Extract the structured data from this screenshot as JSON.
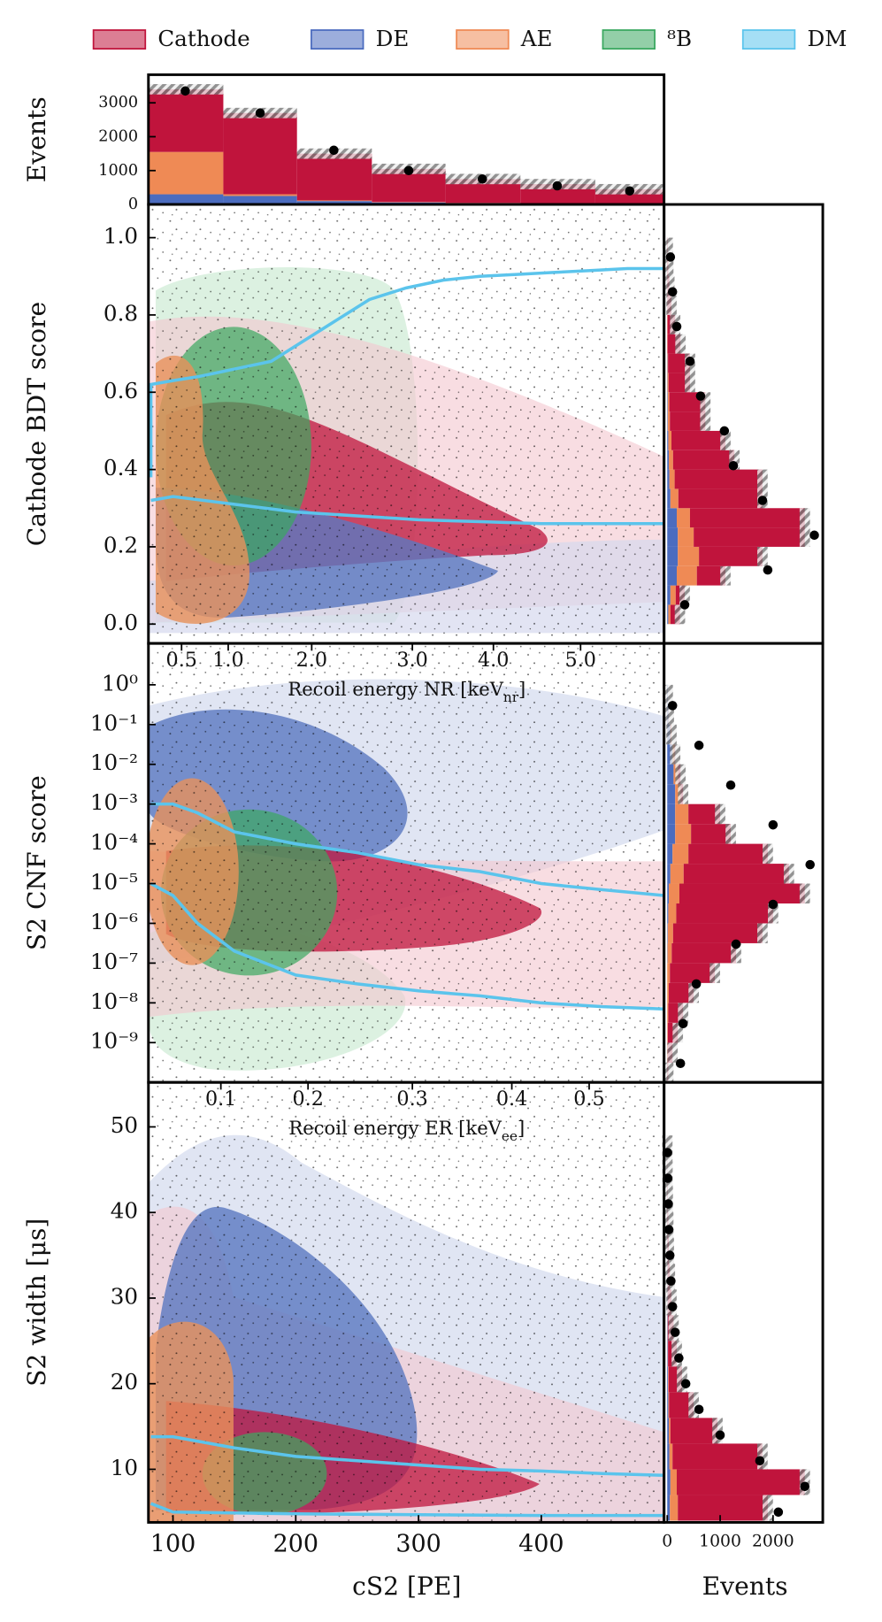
{
  "legend": [
    {
      "name": "Cathode",
      "color": "#c0143c"
    },
    {
      "name": "DE",
      "color": "#4b6cbf"
    },
    {
      "name": "AE",
      "color": "#ef8a55"
    },
    {
      "name": "⁸B",
      "color": "#3aa860"
    },
    {
      "name": "DM",
      "color": "#5bc4ec"
    }
  ],
  "chart_data": [
    {
      "type": "histogram",
      "ylabel": "Events",
      "xlim": [
        80,
        500
      ],
      "ylim": [
        0,
        3830
      ],
      "yticks": [
        0,
        1000,
        2000,
        3000
      ],
      "bins": [
        80,
        141,
        201,
        262,
        322,
        383,
        444,
        500
      ],
      "series": [
        {
          "name": "DE",
          "color": "#4b6cbf",
          "values": [
            300,
            250,
            100,
            60,
            40,
            30,
            20
          ]
        },
        {
          "name": "AE",
          "color": "#ef8a55",
          "values": [
            1250,
            50,
            20,
            10,
            5,
            5,
            5
          ]
        },
        {
          "name": "Cathode",
          "color": "#c0143c",
          "values": [
            1850,
            2400,
            1380,
            980,
            705,
            565,
            425
          ]
        }
      ],
      "points": {
        "x": [
          110,
          171,
          231,
          292,
          352,
          413,
          472
        ],
        "values": [
          3350,
          2700,
          1600,
          1000,
          750,
          550,
          400
        ]
      }
    },
    {
      "type": "scatter",
      "ylabel": "Cathode BDT score",
      "xlim": [
        80,
        500
      ],
      "ylim": [
        -0.05,
        1.086
      ],
      "yticks": [
        {
          "value": 0,
          "label": "0.0"
        },
        0.2,
        0.4,
        0.6,
        0.8,
        {
          "value": 1,
          "label": "1.0"
        }
      ],
      "top_axis": {
        "label_parts": [
          "Recoil energy NR [keV",
          "nr",
          "]"
        ],
        "ticks": [
          {
            "value": 0.5,
            "cs2": 107
          },
          {
            "value": 1,
            "label": "1.0",
            "cs2": 145
          },
          {
            "value": 2,
            "label": "2.0",
            "cs2": 213
          },
          {
            "value": 3,
            "label": "3.0",
            "cs2": 295
          },
          {
            "value": 4,
            "label": "4.0",
            "cs2": 361
          },
          {
            "value": 5,
            "label": "5.0",
            "cs2": 432
          }
        ]
      },
      "curves": [
        {
          "x": [
            82,
            82,
            100,
            120,
            150,
            180,
            200,
            230,
            260,
            290,
            320,
            350,
            380,
            410,
            440,
            470,
            500
          ],
          "values": [
            0.38,
            0.62,
            0.63,
            0.64,
            0.66,
            0.68,
            0.72,
            0.78,
            0.84,
            0.87,
            0.89,
            0.9,
            0.905,
            0.91,
            0.915,
            0.92,
            0.92
          ]
        },
        {
          "x": [
            82,
            100,
            150,
            200,
            250,
            300,
            350,
            400,
            450,
            500
          ],
          "values": [
            0.32,
            0.33,
            0.31,
            0.29,
            0.28,
            0.27,
            0.265,
            0.26,
            0.26,
            0.26
          ]
        }
      ],
      "side": {
        "xlim": [
          -60,
          2940
        ],
        "bins": [
          0,
          0.05,
          0.1,
          0.15,
          0.2,
          0.25,
          0.3,
          0.35,
          0.4,
          0.45,
          0.5,
          0.55,
          0.6,
          0.65,
          0.7,
          0.75,
          0.8,
          0.85,
          0.9,
          0.95,
          1
        ],
        "series": [
          {
            "name": "DE",
            "color": "#4b6cbf",
            "values": [
              20,
              60,
              180,
              200,
              200,
              180,
              60,
              40,
              30,
              20,
              10,
              10,
              5,
              5,
              0,
              0,
              0,
              0,
              0,
              0
            ]
          },
          {
            "name": "AE",
            "color": "#ef8a55",
            "values": [
              40,
              100,
              380,
              400,
              300,
              250,
              150,
              100,
              80,
              60,
              40,
              30,
              20,
              10,
              5,
              5,
              0,
              0,
              0,
              0
            ]
          },
          {
            "name": "Cathode",
            "color": "#c0143c",
            "values": [
              180,
              170,
              540,
              1200,
              2100,
              2170,
              1590,
              1660,
              1160,
              1020,
              670,
              680,
              405,
              415,
              245,
              145,
              80,
              40,
              20,
              10
            ]
          }
        ],
        "points": {
          "y": [
            0.05,
            0.14,
            0.23,
            0.32,
            0.41,
            0.5,
            0.59,
            0.68,
            0.77,
            0.86,
            0.95
          ],
          "values": [
            330,
            1900,
            2780,
            1800,
            1250,
            1080,
            630,
            430,
            180,
            100,
            60
          ]
        }
      }
    },
    {
      "type": "scatter",
      "ylabel": "S2 CNF score",
      "yscale": "log",
      "xlim": [
        80,
        500
      ],
      "ylim": [
        1e-10,
        11
      ],
      "yticks": [
        {
          "value": 1,
          "label": "10⁰"
        },
        {
          "value": 0.1,
          "label": "10⁻¹"
        },
        {
          "value": 0.01,
          "label": "10⁻²"
        },
        {
          "value": 0.001,
          "label": "10⁻³"
        },
        {
          "value": 0.0001,
          "label": "10⁻⁴"
        },
        {
          "value": 1e-05,
          "label": "10⁻⁵"
        },
        {
          "value": 1e-06,
          "label": "10⁻⁶"
        },
        {
          "value": 1e-07,
          "label": "10⁻⁷"
        },
        {
          "value": 1e-08,
          "label": "10⁻⁸"
        },
        {
          "value": 1e-09,
          "label": "10⁻⁹"
        }
      ],
      "top_axis": {
        "label_parts": [
          "Recoil energy ER [keV",
          "ee",
          "]"
        ],
        "ticks": [
          {
            "value": 0.1,
            "cs2": 139
          },
          {
            "value": 0.2,
            "cs2": 210
          },
          {
            "value": 0.3,
            "cs2": 295
          },
          {
            "value": 0.4,
            "cs2": 376
          },
          {
            "value": 0.5,
            "cs2": 439
          }
        ]
      },
      "curves": [
        {
          "x": [
            82,
            100,
            120,
            150,
            200,
            250,
            300,
            350,
            400,
            450,
            500
          ],
          "values": [
            0.001,
            0.001,
            0.0006,
            0.0002,
            0.0001,
            6e-05,
            3e-05,
            2e-05,
            1e-05,
            7e-06,
            5e-06
          ]
        },
        {
          "x": [
            82,
            100,
            120,
            150,
            200,
            250,
            300,
            350,
            400,
            450,
            500
          ],
          "values": [
            1e-05,
            5e-06,
            1e-06,
            2e-07,
            5e-08,
            3e-08,
            2e-08,
            1.5e-08,
            1e-08,
            8e-09,
            7e-09
          ]
        }
      ],
      "side": {
        "xlim": [
          -60,
          2940
        ],
        "bins": [
          1e-10,
          3.16e-10,
          1e-09,
          3.16e-09,
          1e-08,
          3.16e-08,
          1e-07,
          3.16e-07,
          1e-06,
          3.16e-06,
          1e-05,
          3.16e-05,
          0.0001,
          0.000316,
          0.001,
          0.00316,
          0.01,
          0.0316,
          0.1,
          0.316,
          1
        ],
        "series": [
          {
            "name": "DE",
            "color": "#4b6cbf",
            "values": [
              0,
              0,
              0,
              0,
              0,
              0,
              5,
              10,
              20,
              30,
              60,
              100,
              150,
              150,
              150,
              120,
              100,
              60,
              25,
              10
            ]
          },
          {
            "name": "AE",
            "color": "#ef8a55",
            "values": [
              0,
              5,
              10,
              20,
              30,
              50,
              80,
              100,
              150,
              200,
              250,
              300,
              300,
              250,
              100,
              80,
              40,
              15,
              5,
              0
            ]
          },
          {
            "name": "Cathode",
            "color": "#c0143c",
            "values": [
              20,
              95,
              190,
              280,
              470,
              850,
              1215,
              1690,
              1830,
              2370,
              1990,
              1500,
              750,
              600,
              50,
              50,
              10,
              5,
              0,
              0
            ]
          }
        ],
        "points": {
          "y": [
            3e-10,
            3e-09,
            3e-08,
            3e-07,
            3e-06,
            3e-05,
            0.0003,
            0.003,
            0.03,
            0.3
          ],
          "values": [
            250,
            300,
            550,
            1300,
            2000,
            2700,
            2000,
            1200,
            600,
            100
          ]
        }
      }
    },
    {
      "type": "scatter",
      "ylabel": "S2 width [μs]",
      "xlabel": "cS2 [PE]",
      "xlim": [
        80,
        500
      ],
      "xticks": [
        100,
        200,
        300,
        400
      ],
      "ylim": [
        3.8,
        55.2
      ],
      "yticks": [
        10,
        20,
        30,
        40,
        50
      ],
      "curves": [
        {
          "x": [
            82,
            100,
            150,
            200,
            250,
            300,
            350,
            400,
            450,
            500
          ],
          "values": [
            13.8,
            13.8,
            12.5,
            11.5,
            11,
            10.5,
            10,
            9.8,
            9.5,
            9.3
          ]
        },
        {
          "x": [
            82,
            100,
            200,
            300,
            400,
            500
          ],
          "values": [
            6,
            5,
            4.8,
            4.7,
            4.6,
            4.6
          ]
        }
      ],
      "side": {
        "xlim": [
          -60,
          2940
        ],
        "xlabel": "Events",
        "xticks": [
          0,
          1000,
          2000
        ],
        "bins": [
          4,
          7,
          10,
          13,
          16,
          19,
          22,
          25,
          28,
          31,
          34,
          37,
          40,
          43,
          46,
          49
        ],
        "series": [
          {
            "name": "DE",
            "color": "#4b6cbf",
            "values": [
              50,
              60,
              40,
              30,
              20,
              15,
              10,
              8,
              5,
              4,
              3,
              2,
              1,
              1,
              0
            ]
          },
          {
            "name": "AE",
            "color": "#ef8a55",
            "values": [
              150,
              120,
              60,
              30,
              15,
              10,
              5,
              3,
              2,
              1,
              0,
              0,
              0,
              0,
              0
            ]
          },
          {
            "name": "Cathode",
            "color": "#c0143c",
            "values": [
              1700,
              2420,
              1700,
              890,
              465,
              255,
              165,
              109,
              73,
              45,
              27,
              18,
              9,
              4,
              2
            ]
          }
        ],
        "points": {
          "y": [
            5,
            8,
            11,
            14,
            17,
            20,
            23,
            26,
            29,
            32,
            35,
            38,
            41,
            44,
            47
          ],
          "values": [
            2100,
            2600,
            1750,
            1000,
            600,
            350,
            220,
            150,
            100,
            70,
            50,
            30,
            20,
            10,
            5
          ]
        }
      }
    }
  ]
}
